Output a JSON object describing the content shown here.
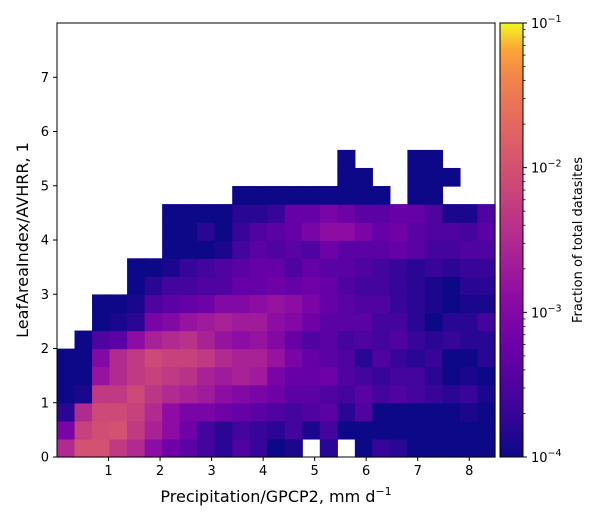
{
  "chart_data": {
    "type": "heatmap",
    "title": "",
    "xlabel": "Precipitation/GPCP2,  mm d",
    "xlabel_sup": "−1",
    "ylabel": "LeafAreaIndex/AVHRR,  1",
    "xlim": [
      0,
      8.5
    ],
    "ylim": [
      0,
      8
    ],
    "x_ticks": [
      1,
      2,
      3,
      4,
      5,
      6,
      7,
      8
    ],
    "y_ticks": [
      0,
      1,
      2,
      3,
      4,
      5,
      6,
      7
    ],
    "x_tick_labels": [
      "1",
      "2",
      "3",
      "4",
      "5",
      "6",
      "7",
      "8"
    ],
    "y_tick_labels": [
      "0",
      "1",
      "2",
      "3",
      "4",
      "5",
      "6",
      "7"
    ],
    "x_bin_width": 0.34,
    "y_bin_width": 0.333,
    "colormap": "plasma",
    "colorbar": {
      "label": "Fraction of total datasites",
      "scale": "log",
      "range": [
        0.0001,
        0.1
      ],
      "tick_labels": [
        {
          "base": "10",
          "exp": "−1"
        },
        {
          "base": "10",
          "exp": "−2"
        },
        {
          "base": "10",
          "exp": "−3"
        },
        {
          "base": "10",
          "exp": "−4"
        }
      ]
    },
    "grid": false,
    "value_encoding": "log10 of fraction of total datasites per cell; null = no data",
    "rows": [
      [
        -2.5,
        -2.0,
        -2.0,
        -2.3,
        -2.5,
        -2.9,
        -3.2,
        -3.4,
        -3.6,
        -3.8,
        -3.5,
        -3.7,
        -4.0,
        -3.9,
        null,
        -3.8,
        null,
        -4.0,
        -3.7,
        -3.8,
        -4.0,
        -4.0,
        -4.0,
        -4.0,
        -4.0
      ],
      [
        -3.1,
        -2.2,
        -2.05,
        -2.0,
        -2.3,
        -2.6,
        -2.9,
        -3.2,
        -3.6,
        -3.8,
        -3.6,
        -3.7,
        -3.8,
        -3.6,
        -3.9,
        -3.6,
        -4.0,
        -4.0,
        -4.0,
        -4.0,
        -4.0,
        -4.0,
        -4.0,
        -4.0,
        -4.0
      ],
      [
        -3.8,
        -2.5,
        -2.1,
        -2.1,
        -2.2,
        -2.5,
        -2.9,
        -3.1,
        -3.1,
        -3.2,
        -3.3,
        -3.4,
        -3.5,
        -3.6,
        -3.5,
        -3.4,
        -3.8,
        -3.5,
        -4.0,
        -4.0,
        -4.0,
        -4.0,
        -4.0,
        -3.9,
        -4.0
      ],
      [
        -4.0,
        -3.9,
        -2.3,
        -2.3,
        -2.1,
        -2.35,
        -2.5,
        -2.6,
        -2.7,
        -2.9,
        -3.0,
        -3.1,
        -3.2,
        -3.4,
        -3.4,
        -3.5,
        -3.6,
        -3.4,
        -3.6,
        -3.5,
        -3.6,
        -3.7,
        -3.8,
        -3.7,
        -3.9
      ],
      [
        -4.0,
        -4.0,
        -2.8,
        -2.5,
        -2.3,
        -2.2,
        -2.3,
        -2.4,
        -2.6,
        -2.7,
        -2.6,
        -2.7,
        -3.1,
        -3.3,
        -3.3,
        -3.2,
        -3.5,
        -3.6,
        -3.7,
        -3.6,
        -3.6,
        -3.8,
        -4.0,
        -3.9,
        -4.0
      ],
      [
        -4.0,
        -4.0,
        -3.0,
        -2.5,
        -2.3,
        -2.1,
        -2.2,
        -2.2,
        -2.3,
        -2.5,
        -2.6,
        -2.6,
        -2.8,
        -3.1,
        -3.3,
        -3.4,
        -3.5,
        -3.8,
        -3.5,
        -3.7,
        -3.8,
        -3.7,
        -4.0,
        -4.0,
        -3.8
      ],
      [
        null,
        -4.0,
        -3.5,
        -3.4,
        -2.9,
        -2.6,
        -2.5,
        -2.4,
        -2.6,
        -2.8,
        -2.9,
        -2.8,
        -3.0,
        -3.3,
        -3.5,
        -3.4,
        -3.6,
        -3.5,
        -3.6,
        -3.5,
        -3.7,
        -3.8,
        -3.7,
        -3.8,
        -3.8
      ],
      [
        null,
        null,
        -4.0,
        -3.9,
        -3.8,
        -3.1,
        -3.0,
        -2.8,
        -2.7,
        -2.6,
        -2.7,
        -2.7,
        -2.9,
        -3.0,
        -3.2,
        -3.4,
        -3.4,
        -3.4,
        -3.6,
        -3.6,
        -3.8,
        -4.0,
        -3.8,
        -3.8,
        -3.6
      ],
      [
        null,
        null,
        -4.0,
        -4.0,
        -3.9,
        -3.5,
        -3.4,
        -3.3,
        -3.2,
        -3.0,
        -3.0,
        -2.9,
        -2.8,
        -2.9,
        -3.1,
        -3.3,
        -3.4,
        -3.5,
        -3.5,
        -3.7,
        -3.8,
        -3.9,
        -4.0,
        -3.9,
        -3.9
      ],
      [
        null,
        null,
        null,
        null,
        -4.0,
        -3.8,
        -3.6,
        -3.6,
        -3.5,
        -3.5,
        -3.3,
        -3.3,
        -3.2,
        -3.3,
        -3.2,
        -3.3,
        -3.5,
        -3.6,
        -3.6,
        -3.7,
        -3.8,
        -3.9,
        -4.0,
        -3.8,
        -3.8
      ],
      [
        null,
        null,
        null,
        null,
        -4.0,
        -4.0,
        -3.9,
        -3.7,
        -3.6,
        -3.5,
        -3.4,
        -3.3,
        -3.3,
        -3.5,
        -3.3,
        -3.4,
        -3.4,
        -3.5,
        -3.6,
        -3.7,
        -3.8,
        -3.7,
        -3.8,
        -3.7,
        -3.7
      ],
      [
        null,
        null,
        null,
        null,
        null,
        null,
        -4.0,
        -4.0,
        -4.0,
        -3.9,
        -3.6,
        -3.4,
        -3.5,
        -3.4,
        -3.5,
        -3.2,
        -3.4,
        -3.4,
        -3.4,
        -3.3,
        -3.4,
        -3.6,
        -3.6,
        -3.5,
        -3.5
      ],
      [
        null,
        null,
        null,
        null,
        null,
        null,
        -4.0,
        -4.0,
        -3.8,
        -4.0,
        -3.7,
        -3.5,
        -3.4,
        -3.3,
        -3.1,
        -2.9,
        -2.9,
        -3.1,
        -3.3,
        -3.2,
        -3.4,
        -3.5,
        -3.5,
        -3.6,
        -3.4
      ],
      [
        null,
        null,
        null,
        null,
        null,
        null,
        -4.0,
        -4.0,
        -4.0,
        -4.0,
        -3.8,
        -3.8,
        -3.7,
        -3.3,
        -3.3,
        -3.1,
        -3.2,
        -3.4,
        -3.4,
        -3.3,
        -3.3,
        -3.5,
        -3.9,
        -3.9,
        -3.5
      ],
      [
        null,
        null,
        null,
        null,
        null,
        null,
        null,
        null,
        null,
        null,
        -4.0,
        -4.0,
        -4.0,
        -4.0,
        -4.0,
        -4.0,
        -4.0,
        -4.0,
        -4.0,
        null,
        -4.0,
        -4.0,
        null,
        null,
        null
      ],
      [
        null,
        null,
        null,
        null,
        null,
        null,
        null,
        null,
        null,
        null,
        null,
        null,
        null,
        null,
        null,
        null,
        -4.0,
        -4.0,
        null,
        null,
        -4.0,
        -4.0,
        -4.0,
        null,
        null
      ],
      [
        null,
        null,
        null,
        null,
        null,
        null,
        null,
        null,
        null,
        null,
        null,
        null,
        null,
        null,
        null,
        null,
        -4.0,
        null,
        null,
        null,
        -4.0,
        -4.0,
        null,
        null,
        null
      ],
      [
        null,
        null,
        null,
        null,
        null,
        null,
        null,
        null,
        null,
        null,
        null,
        null,
        null,
        null,
        null,
        null,
        null,
        null,
        null,
        null,
        null,
        null,
        null,
        null,
        null
      ]
    ]
  }
}
